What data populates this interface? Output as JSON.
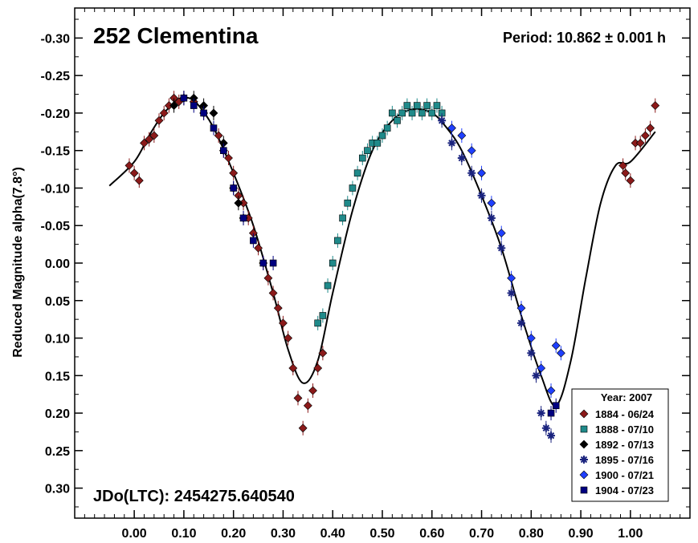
{
  "chart_data": {
    "type": "scatter",
    "title": "252 Clementina",
    "period_label": "Period: 10.862 ± 0.001 h",
    "jdo_label": "JDo(LTC): 2454275.640540",
    "xlabel": "",
    "ylabel": "Reduced Magnitude alpha(7.8°)",
    "xlim": [
      -0.12,
      1.12
    ],
    "ylim": [
      0.34,
      -0.34
    ],
    "y_inverted": true,
    "x_ticks": [
      "0.00",
      "0.10",
      "0.20",
      "0.30",
      "0.40",
      "0.50",
      "0.60",
      "0.70",
      "0.80",
      "0.90",
      "1.00"
    ],
    "x_tick_values": [
      0,
      0.1,
      0.2,
      0.3,
      0.4,
      0.5,
      0.6,
      0.7,
      0.8,
      0.9,
      1.0
    ],
    "y_ticks": [
      "-0.30",
      "-0.25",
      "-0.20",
      "-0.15",
      "-0.10",
      "-0.05",
      "0.00",
      "0.05",
      "0.10",
      "0.15",
      "0.20",
      "0.25",
      "0.30"
    ],
    "y_tick_values": [
      -0.3,
      -0.25,
      -0.2,
      -0.15,
      -0.1,
      -0.05,
      0,
      0.05,
      0.1,
      0.15,
      0.2,
      0.25,
      0.3
    ],
    "grid": false,
    "legend": {
      "title": "Year: 2007",
      "placement": "bottom-right",
      "entries": [
        {
          "label": "1884 - 06/24",
          "marker": "diamond",
          "color": "#8b1a1a"
        },
        {
          "label": "1888 - 07/10",
          "marker": "square",
          "color": "#1f8a8a"
        },
        {
          "label": "1892 - 07/13",
          "marker": "diamond",
          "color": "#000000"
        },
        {
          "label": "1895 - 07/16",
          "marker": "asterisk",
          "color": "#1a237e"
        },
        {
          "label": "1900 - 07/21",
          "marker": "diamond",
          "color": "#1f3fff"
        },
        {
          "label": "1904 - 07/23",
          "marker": "square",
          "color": "#000080"
        }
      ]
    },
    "fit_curve": {
      "x": [
        -0.05,
        0.0,
        0.03,
        0.06,
        0.09,
        0.11,
        0.13,
        0.16,
        0.2,
        0.24,
        0.28,
        0.31,
        0.34,
        0.37,
        0.4,
        0.44,
        0.48,
        0.52,
        0.56,
        0.6,
        0.63,
        0.66,
        0.7,
        0.74,
        0.78,
        0.82,
        0.85,
        0.88,
        0.91,
        0.94,
        0.97,
        1.0,
        1.05
      ],
      "y": [
        -0.103,
        -0.135,
        -0.17,
        -0.2,
        -0.218,
        -0.22,
        -0.21,
        -0.18,
        -0.12,
        -0.05,
        0.04,
        0.115,
        0.16,
        0.13,
        0.04,
        -0.07,
        -0.15,
        -0.19,
        -0.205,
        -0.2,
        -0.18,
        -0.15,
        -0.09,
        -0.02,
        0.07,
        0.15,
        0.19,
        0.13,
        0.02,
        -0.08,
        -0.13,
        -0.135,
        -0.175
      ]
    },
    "series": [
      {
        "name": "1884 - 06/24",
        "marker": "diamond",
        "color": "#8b1a1a",
        "x": [
          -0.01,
          0.0,
          0.01,
          0.02,
          0.03,
          0.04,
          0.05,
          0.06,
          0.07,
          0.08,
          0.09,
          0.1,
          0.12,
          0.14,
          0.17,
          0.18,
          0.19,
          0.2,
          0.21,
          0.22,
          0.23,
          0.24,
          0.25,
          0.26,
          0.27,
          0.28,
          0.29,
          0.3,
          0.31,
          0.32,
          0.33,
          0.34,
          0.35,
          0.36,
          0.37,
          0.38,
          0.985,
          0.99,
          1.0,
          1.01,
          1.02,
          1.03,
          1.04,
          1.05
        ],
        "y": [
          -0.13,
          -0.12,
          -0.11,
          -0.16,
          -0.165,
          -0.17,
          -0.19,
          -0.2,
          -0.21,
          -0.22,
          -0.215,
          -0.22,
          -0.215,
          -0.2,
          -0.17,
          -0.15,
          -0.14,
          -0.12,
          -0.09,
          -0.08,
          -0.06,
          -0.04,
          -0.02,
          0.0,
          0.02,
          0.04,
          0.06,
          0.08,
          0.1,
          0.14,
          0.18,
          0.22,
          0.19,
          0.17,
          0.14,
          0.12,
          -0.13,
          -0.12,
          -0.11,
          -0.16,
          -0.16,
          -0.17,
          -0.18,
          -0.21
        ]
      },
      {
        "name": "1888 - 07/10",
        "marker": "square",
        "color": "#1f8a8a",
        "x": [
          0.37,
          0.38,
          0.39,
          0.4,
          0.41,
          0.42,
          0.43,
          0.44,
          0.45,
          0.46,
          0.47,
          0.48,
          0.49,
          0.5,
          0.51,
          0.52,
          0.53,
          0.54,
          0.55,
          0.56,
          0.57,
          0.58,
          0.59,
          0.6,
          0.61,
          0.62
        ],
        "y": [
          0.08,
          0.07,
          0.03,
          0.0,
          -0.03,
          -0.06,
          -0.08,
          -0.1,
          -0.12,
          -0.14,
          -0.15,
          -0.16,
          -0.16,
          -0.17,
          -0.18,
          -0.2,
          -0.19,
          -0.2,
          -0.21,
          -0.2,
          -0.21,
          -0.2,
          -0.21,
          -0.2,
          -0.21,
          -0.2
        ]
      },
      {
        "name": "1892 - 07/13",
        "marker": "diamond",
        "color": "#000000",
        "x": [
          0.08,
          0.1,
          0.12,
          0.14,
          0.16,
          0.18,
          0.2,
          0.21,
          0.22
        ],
        "y": [
          -0.21,
          -0.22,
          -0.22,
          -0.21,
          -0.2,
          -0.16,
          -0.1,
          -0.08,
          -0.06
        ]
      },
      {
        "name": "1895 - 07/16",
        "marker": "asterisk",
        "color": "#1a237e",
        "x": [
          0.62,
          0.64,
          0.66,
          0.68,
          0.7,
          0.72,
          0.74,
          0.76,
          0.78,
          0.8,
          0.81,
          0.82,
          0.83,
          0.84
        ],
        "y": [
          -0.19,
          -0.16,
          -0.14,
          -0.12,
          -0.09,
          -0.06,
          -0.02,
          0.04,
          0.08,
          0.12,
          0.15,
          0.2,
          0.22,
          0.23
        ]
      },
      {
        "name": "1900 - 07/21",
        "marker": "diamond",
        "color": "#1f3fff",
        "x": [
          0.64,
          0.66,
          0.68,
          0.7,
          0.72,
          0.74,
          0.76,
          0.78,
          0.8,
          0.82,
          0.84,
          0.85,
          0.86
        ],
        "y": [
          -0.18,
          -0.17,
          -0.15,
          -0.12,
          -0.08,
          -0.04,
          0.02,
          0.06,
          0.1,
          0.14,
          0.17,
          0.11,
          0.12
        ]
      },
      {
        "name": "1904 - 07/23",
        "marker": "square",
        "color": "#000080",
        "x": [
          0.1,
          0.12,
          0.14,
          0.16,
          0.18,
          0.2,
          0.22,
          0.24,
          0.26,
          0.28,
          0.84,
          0.85
        ],
        "y": [
          -0.22,
          -0.21,
          -0.2,
          -0.18,
          -0.15,
          -0.1,
          -0.06,
          -0.03,
          0.0,
          0.0,
          0.2,
          0.19
        ]
      }
    ]
  }
}
